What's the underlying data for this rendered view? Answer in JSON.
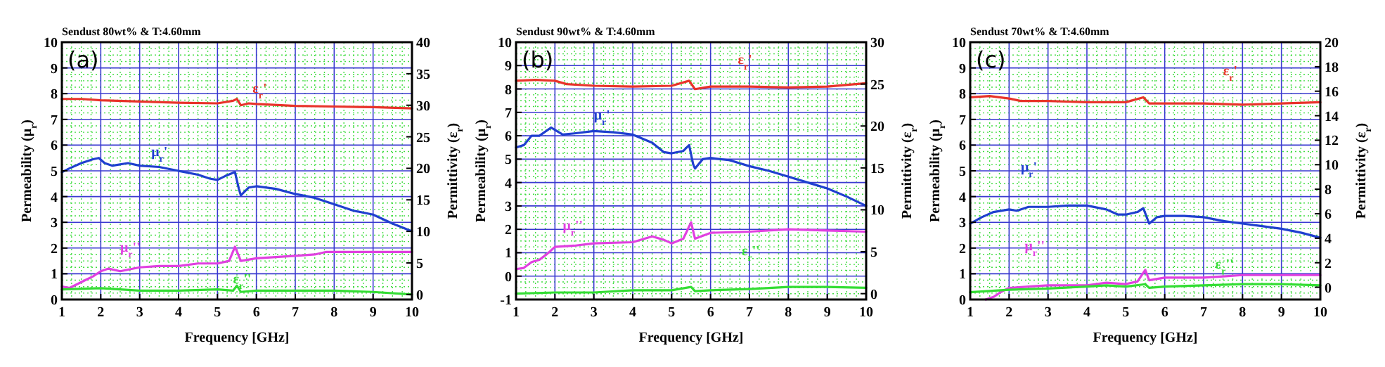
{
  "chart_data": [
    {
      "type": "line",
      "title": "Sendust 80wt% & T:4.60mm",
      "xlabel": "Frequency [GHz]",
      "ylabel": "Permeability (μ$_{r}$)",
      "y2label": "Permittivity (ε$_{r}$)",
      "annotations": [
        "(a)"
      ],
      "grid": true,
      "xlim": [
        1,
        10
      ],
      "xticks": [
        1,
        2,
        3,
        4,
        5,
        6,
        7,
        8,
        9,
        10
      ],
      "ylim": [
        0,
        10
      ],
      "yticks": [
        0,
        1,
        2,
        3,
        4,
        5,
        6,
        7,
        8,
        9,
        10
      ],
      "y2lim": [
        -0.8,
        40
      ],
      "y2ticks": [
        0,
        5,
        10,
        15,
        20,
        25,
        30,
        35,
        40
      ],
      "series": [
        {
          "name": "ε$_{r}$'",
          "color": "#e8332a",
          "axis": "y2",
          "x": [
            1,
            1.5,
            2,
            3,
            4,
            5,
            5.4,
            5.5,
            5.6,
            5.8,
            6,
            7,
            8,
            9,
            10
          ],
          "values": [
            31.0,
            31.0,
            30.8,
            30.6,
            30.4,
            30.3,
            30.7,
            31.0,
            30.0,
            30.3,
            30.2,
            29.9,
            29.8,
            29.7,
            29.5
          ]
        },
        {
          "name": "μ$_{r}$'",
          "color": "#1f3fcf",
          "x": [
            1,
            1.2,
            1.5,
            1.8,
            1.95,
            2.1,
            2.3,
            2.7,
            3,
            3.5,
            4,
            4.5,
            4.8,
            5,
            5.2,
            5.45,
            5.55,
            5.6,
            5.8,
            6,
            6.5,
            7,
            7.5,
            8,
            8.5,
            9,
            9.5,
            10
          ],
          "values": [
            4.95,
            5.1,
            5.3,
            5.45,
            5.5,
            5.3,
            5.2,
            5.3,
            5.2,
            5.15,
            5.0,
            4.85,
            4.7,
            4.65,
            4.8,
            4.95,
            4.3,
            4.05,
            4.35,
            4.4,
            4.3,
            4.1,
            3.95,
            3.7,
            3.45,
            3.3,
            2.95,
            2.65
          ]
        },
        {
          "name": "μ$_{r}$''",
          "color": "#e040e0",
          "x": [
            1,
            1.2,
            1.4,
            1.6,
            1.8,
            2,
            2.2,
            2.5,
            3,
            3.5,
            4,
            4.5,
            5,
            5.3,
            5.45,
            5.6,
            6,
            6.5,
            7,
            7.5,
            7.8,
            8,
            9,
            10
          ],
          "values": [
            0.5,
            0.45,
            0.6,
            0.75,
            0.9,
            1.1,
            1.2,
            1.1,
            1.25,
            1.3,
            1.3,
            1.4,
            1.4,
            1.5,
            2.05,
            1.5,
            1.6,
            1.65,
            1.7,
            1.75,
            1.85,
            1.85,
            1.85,
            1.85
          ]
        },
        {
          "name": "ε$_{r}$''",
          "color": "#33dd33",
          "axis": "y2",
          "x": [
            1,
            2,
            3,
            4,
            5,
            5.4,
            5.5,
            5.6,
            6,
            7,
            8,
            9,
            10
          ],
          "values": [
            0.8,
            1.0,
            0.6,
            0.6,
            0.8,
            0.6,
            1.4,
            0.4,
            0.6,
            0.6,
            0.6,
            0.4,
            0.0
          ]
        }
      ]
    },
    {
      "type": "line",
      "title": "Sendust 90wt% & T:4.60mm",
      "xlabel": "Frequency [GHz]",
      "ylabel": "Permeability (μ$_{r}$)",
      "y2label": "Permittivity (ε$_{r}$)",
      "annotations": [
        "(b)"
      ],
      "grid": true,
      "xlim": [
        1,
        10
      ],
      "xticks": [
        1,
        2,
        3,
        4,
        5,
        6,
        7,
        8,
        9,
        10
      ],
      "ylim": [
        -1,
        10
      ],
      "yticks": [
        -1,
        0,
        1,
        2,
        3,
        4,
        5,
        6,
        7,
        8,
        9,
        10
      ],
      "y2lim": [
        -0.7,
        30
      ],
      "y2ticks": [
        0,
        5,
        10,
        15,
        20,
        25,
        30
      ],
      "series": [
        {
          "name": "ε$_{r}$'",
          "color": "#e8332a",
          "axis": "y2",
          "x": [
            1,
            1.5,
            2,
            2.3,
            3,
            4,
            5,
            5.45,
            5.6,
            6,
            7,
            8,
            9,
            10
          ],
          "values": [
            25.4,
            25.5,
            25.4,
            25.0,
            24.8,
            24.7,
            24.8,
            25.4,
            24.4,
            24.7,
            24.7,
            24.6,
            24.7,
            25.1
          ]
        },
        {
          "name": "μ$_{r}$'",
          "color": "#1f3fcf",
          "x": [
            1,
            1.2,
            1.4,
            1.6,
            1.9,
            2.2,
            2.5,
            3,
            3.5,
            4,
            4.5,
            4.8,
            5,
            5.3,
            5.45,
            5.55,
            5.6,
            5.8,
            6,
            6.5,
            7,
            7.5,
            8,
            8.5,
            9,
            9.5,
            10
          ],
          "values": [
            5.5,
            5.6,
            6.0,
            6.0,
            6.35,
            6.05,
            6.1,
            6.2,
            6.15,
            6.05,
            5.7,
            5.3,
            5.25,
            5.35,
            5.6,
            4.8,
            4.6,
            5.0,
            5.05,
            4.95,
            4.7,
            4.5,
            4.25,
            4.0,
            3.75,
            3.4,
            3.0
          ]
        },
        {
          "name": "μ$_{r}$''",
          "color": "#e040e0",
          "x": [
            1,
            1.2,
            1.4,
            1.6,
            1.8,
            2,
            2.5,
            3,
            4,
            4.5,
            4.8,
            5,
            5.3,
            5.5,
            5.6,
            6,
            7,
            8,
            9,
            10
          ],
          "values": [
            0.3,
            0.35,
            0.6,
            0.7,
            0.95,
            1.25,
            1.3,
            1.4,
            1.45,
            1.7,
            1.55,
            1.4,
            1.6,
            2.3,
            1.6,
            1.85,
            1.9,
            2.0,
            1.95,
            1.9
          ]
        },
        {
          "name": "ε$_{r}$''",
          "color": "#33dd33",
          "axis": "y2",
          "x": [
            1,
            2,
            3,
            4,
            5,
            5.5,
            5.6,
            6,
            7,
            8,
            9,
            10
          ],
          "values": [
            0.0,
            0.14,
            0.14,
            0.4,
            0.4,
            0.8,
            0.3,
            0.4,
            0.55,
            0.8,
            0.8,
            0.7
          ]
        }
      ]
    },
    {
      "type": "line",
      "title": "Sendust 70wt% & T:4.60mm",
      "xlabel": "Frequency [GHz]",
      "ylabel": "Permeability (μ$_{r}$)",
      "y2label": "Permittivity (ε$_{r}$)",
      "annotations": [
        "(c)"
      ],
      "grid": true,
      "xlim": [
        1,
        10
      ],
      "xticks": [
        1,
        2,
        3,
        4,
        5,
        6,
        7,
        8,
        9,
        10
      ],
      "ylim": [
        0,
        10
      ],
      "yticks": [
        0,
        1,
        2,
        3,
        4,
        5,
        6,
        7,
        8,
        9,
        10
      ],
      "y2lim": [
        -1,
        20
      ],
      "y2ticks": [
        0,
        2,
        4,
        6,
        8,
        10,
        12,
        14,
        16,
        18,
        20
      ],
      "series": [
        {
          "name": "ε$_{r}$'",
          "color": "#e8332a",
          "axis": "y2",
          "x": [
            1,
            1.5,
            2,
            2.3,
            3,
            4,
            5,
            5.45,
            5.6,
            6,
            7,
            8,
            9,
            10
          ],
          "values": [
            15.5,
            15.6,
            15.4,
            15.2,
            15.2,
            15.1,
            15.1,
            15.5,
            15.0,
            15.0,
            15.0,
            14.9,
            15.0,
            15.1
          ]
        },
        {
          "name": "μ$_{r}$'",
          "color": "#1f3fcf",
          "x": [
            1,
            1.3,
            1.6,
            2,
            2.2,
            2.5,
            3,
            3.5,
            4,
            4.5,
            4.8,
            5,
            5.3,
            5.45,
            5.6,
            5.8,
            6,
            6.5,
            7,
            7.5,
            8,
            8.5,
            9,
            9.5,
            10
          ],
          "values": [
            2.95,
            3.2,
            3.4,
            3.5,
            3.45,
            3.6,
            3.6,
            3.65,
            3.65,
            3.5,
            3.3,
            3.3,
            3.4,
            3.55,
            2.95,
            3.2,
            3.25,
            3.25,
            3.2,
            3.05,
            2.95,
            2.85,
            2.75,
            2.6,
            2.4
          ]
        },
        {
          "name": "μ$_{r}$''",
          "color": "#e040e0",
          "x": [
            1.4,
            1.6,
            1.8,
            2,
            2.5,
            3,
            4,
            4.5,
            5,
            5.3,
            5.5,
            5.6,
            6,
            7,
            7.5,
            8,
            9,
            10
          ],
          "values": [
            0.0,
            0.1,
            0.3,
            0.45,
            0.5,
            0.55,
            0.55,
            0.65,
            0.6,
            0.7,
            1.15,
            0.75,
            0.85,
            0.85,
            0.9,
            0.95,
            0.95,
            0.95
          ]
        },
        {
          "name": "ε$_{r}$''",
          "color": "#33dd33",
          "axis": "y2",
          "x": [
            1,
            2,
            3,
            4,
            4.5,
            5,
            5.5,
            5.6,
            6,
            7,
            8,
            9,
            10
          ],
          "values": [
            -0.4,
            -0.2,
            -0.1,
            0.05,
            0.15,
            0.05,
            0.25,
            -0.05,
            0.05,
            0.15,
            0.25,
            0.25,
            0.15
          ]
        }
      ]
    }
  ]
}
